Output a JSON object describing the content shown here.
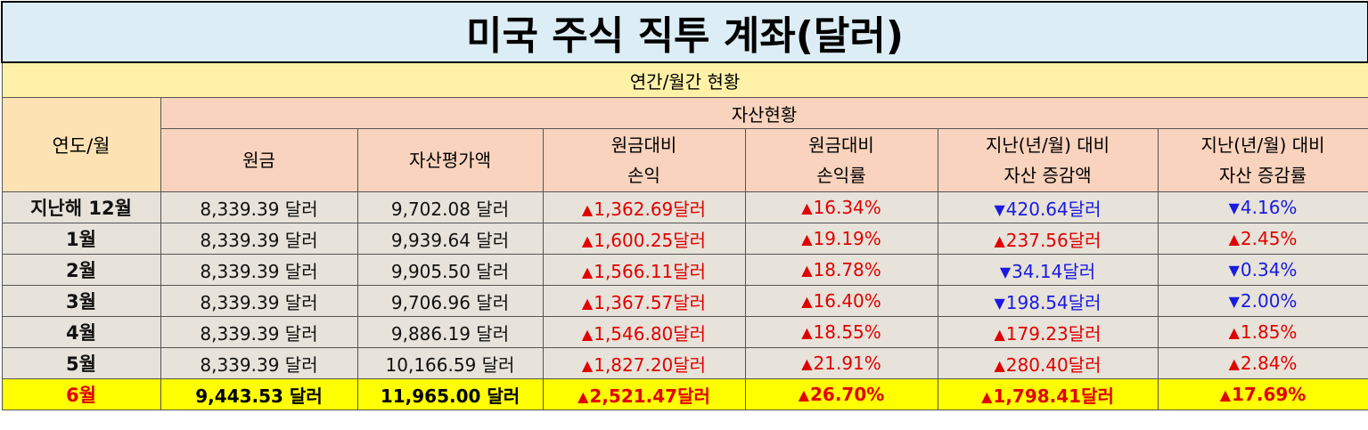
{
  "title": "미국 주식 직투 계좌(달러)",
  "section": "연간/월간 현황",
  "headers": {
    "period": "연도/월",
    "asset_group": "자산현황",
    "principal": "원금",
    "valuation": "자산평가액",
    "pnl_line1": "원금대비",
    "pnl_line2": "손익",
    "pnl_rate_line1": "원금대비",
    "pnl_rate_line2": "손익률",
    "change_line1": "지난(년/월) 대비",
    "change_line2": "자산 증감액",
    "change_rate_line1": "지난(년/월) 대비",
    "change_rate_line2": "자산 증감률"
  },
  "symbols": {
    "up": "▲",
    "down": "▼"
  },
  "colors": {
    "up": "#e00000",
    "down": "#1a1ae0",
    "highlight": "#ffff00"
  },
  "rows": [
    {
      "period": "지난해 12월",
      "principal": "8,339.39 달러",
      "valuation": "9,702.08 달러",
      "pnl": "1,362.69달러",
      "pnl_dir": "up",
      "pnl_rate": "16.34%",
      "pnl_rate_dir": "up",
      "change": "420.64달러",
      "change_dir": "down",
      "change_rate": "4.16%",
      "change_rate_dir": "down"
    },
    {
      "period": "1월",
      "principal": "8,339.39 달러",
      "valuation": "9,939.64 달러",
      "pnl": "1,600.25달러",
      "pnl_dir": "up",
      "pnl_rate": "19.19%",
      "pnl_rate_dir": "up",
      "change": "237.56달러",
      "change_dir": "up",
      "change_rate": "2.45%",
      "change_rate_dir": "up"
    },
    {
      "period": "2월",
      "principal": "8,339.39 달러",
      "valuation": "9,905.50 달러",
      "pnl": "1,566.11달러",
      "pnl_dir": "up",
      "pnl_rate": "18.78%",
      "pnl_rate_dir": "up",
      "change": "34.14달러",
      "change_dir": "down",
      "change_rate": "0.34%",
      "change_rate_dir": "down"
    },
    {
      "period": "3월",
      "principal": "8,339.39 달러",
      "valuation": "9,706.96 달러",
      "pnl": "1,367.57달러",
      "pnl_dir": "up",
      "pnl_rate": "16.40%",
      "pnl_rate_dir": "up",
      "change": "198.54달러",
      "change_dir": "down",
      "change_rate": "2.00%",
      "change_rate_dir": "down"
    },
    {
      "period": "4월",
      "principal": "8,339.39 달러",
      "valuation": "9,886.19 달러",
      "pnl": "1,546.80달러",
      "pnl_dir": "up",
      "pnl_rate": "18.55%",
      "pnl_rate_dir": "up",
      "change": "179.23달러",
      "change_dir": "up",
      "change_rate": "1.85%",
      "change_rate_dir": "up"
    },
    {
      "period": "5월",
      "principal": "8,339.39 달러",
      "valuation": "10,166.59 달러",
      "pnl": "1,827.20달러",
      "pnl_dir": "up",
      "pnl_rate": "21.91%",
      "pnl_rate_dir": "up",
      "change": "280.40달러",
      "change_dir": "up",
      "change_rate": "2.84%",
      "change_rate_dir": "up"
    },
    {
      "period": "6월",
      "principal": "9,443.53 달러",
      "valuation": "11,965.00 달러",
      "pnl": "2,521.47달러",
      "pnl_dir": "up",
      "pnl_rate": "26.70%",
      "pnl_rate_dir": "up",
      "change": "1,798.41달러",
      "change_dir": "up",
      "change_rate": "17.69%",
      "change_rate_dir": "up",
      "highlight": true
    }
  ]
}
